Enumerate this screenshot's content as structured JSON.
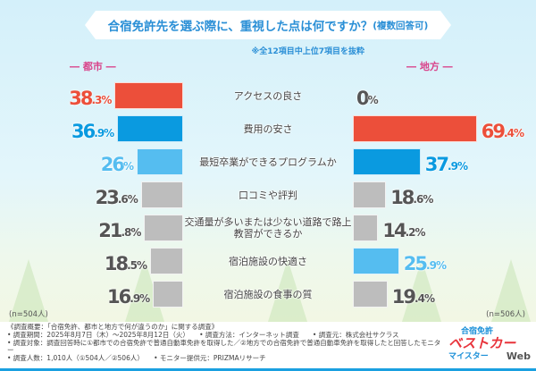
{
  "chart_data": {
    "type": "bar",
    "title": "合宿免許先を選ぶ際に、重視した点は何ですか？",
    "title_suffix": "(複数回答可)",
    "note": "※全12項目中上位7項目を抜粋",
    "categories": [
      "アクセスの良さ",
      "費用の安さ",
      "最短卒業ができるプログラムか",
      "口コミや評判",
      "交通量が多いまたは少ない道路で路上教習ができるか",
      "宿泊施設の快適さ",
      "宿泊施設の食事の質"
    ],
    "series": [
      {
        "name": "都市",
        "n_label": "(n=504人)",
        "values": [
          38.3,
          36.9,
          26.0,
          23.6,
          21.8,
          18.5,
          16.9
        ],
        "colors": [
          "#ec4f3a",
          "#0a9ae0",
          "#55bdf0",
          "#bdbdbd",
          "#bdbdbd",
          "#bdbdbd",
          "#bdbdbd"
        ]
      },
      {
        "name": "地方",
        "n_label": "(n=506人)",
        "values": [
          0,
          69.4,
          37.9,
          18.6,
          14.2,
          25.9,
          19.4
        ],
        "colors": [
          "#bdbdbd",
          "#ec4f3a",
          "#0a9ae0",
          "#bdbdbd",
          "#bdbdbd",
          "#55bdf0",
          "#bdbdbd"
        ]
      }
    ],
    "unit": "%"
  },
  "side_labels": {
    "left": "― 都市 ―",
    "right": "― 地方 ―"
  },
  "footer": {
    "lines": [
      "《調査概要：「合宿免許、都市と地方で何が違うのか」に関する調査》",
      "• 調査期間：2025年8月7日（木）～2025年8月12日（火）　　• 調査方法：インターネット調査　　• 調査元：株式会社サクラス",
      "• 調査対象：調査回答時に①都市での合宿免許で普通自動車免許を取得した／②地方での合宿免許で普通自動車免許を取得したと回答したモニター",
      "• 調査人数：1,010人（①504人／②506人）　　• モニター提供元：PRIZMAリサーチ"
    ]
  },
  "logo": {
    "line1": "合宿免許",
    "line2": "ベストカー",
    "line3": "マイスター",
    "line4": "Web"
  }
}
